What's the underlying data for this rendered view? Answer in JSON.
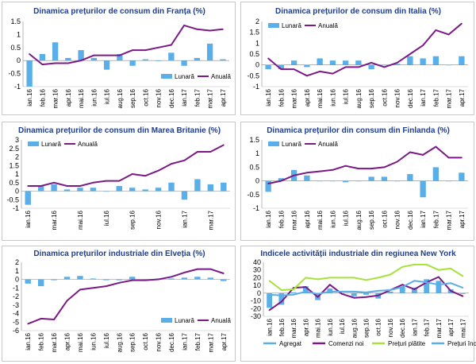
{
  "colors": {
    "bar": "#5aafe8",
    "annual": "#7b1a86",
    "title": "#1f3e8c",
    "purple": "#7b1a86",
    "blue_line": "#5aafe8",
    "green_line": "#a6e23a",
    "light_blue_line": "#5aafe8"
  },
  "chart_data": [
    {
      "type": "bar+line",
      "title": "Dinamica prețurilor de consum din Franța (%)",
      "ylim": [
        -1,
        1.5
      ],
      "yticks": [
        "-1",
        "-0.5",
        "0",
        "0.5",
        "1",
        "1.5"
      ],
      "categories": [
        "ian.16",
        "feb.16",
        "mar.16",
        "apr.16",
        "mai.16",
        "iun.16",
        "iul.16",
        "aug.16",
        "sep.16",
        "oct.16",
        "nov.16",
        "dec.16",
        "ian.17",
        "feb.17",
        "mar.17",
        "apr.17"
      ],
      "xlabels": [
        "ian.16",
        "feb.16",
        "mar.16",
        "apr.16",
        "mai.16",
        "iun.16",
        "iul.16",
        "aug.16",
        "sep.16",
        "oct.16",
        "nov.16",
        "dec.16",
        "ian.17",
        "feb.17",
        "mar.17",
        "apr.17"
      ],
      "legend": [
        "Lunară",
        "Anuală"
      ],
      "legend_pos": "bottom-right",
      "series": [
        {
          "name": "Lunară",
          "kind": "bar",
          "values": [
            -1.0,
            0.25,
            0.7,
            0.1,
            0.4,
            0.1,
            -0.35,
            0.25,
            -0.2,
            0.05,
            0.0,
            0.3,
            -0.2,
            0.1,
            0.65,
            0.05
          ]
        },
        {
          "name": "Anuală",
          "kind": "line",
          "values": [
            0.25,
            -0.15,
            -0.1,
            -0.1,
            0.0,
            0.2,
            0.2,
            0.2,
            0.4,
            0.4,
            0.5,
            0.6,
            1.35,
            1.2,
            1.15,
            1.2
          ]
        }
      ]
    },
    {
      "type": "bar+line",
      "title": "Dinamica prețurilor de consum din Italia (%)",
      "ylim": [
        -1,
        2
      ],
      "yticks": [
        "-1",
        "-0.5",
        "0",
        "0.5",
        "1",
        "1.5",
        "2"
      ],
      "categories": [
        "ian.16",
        "feb.16",
        "mar.16",
        "apr.16",
        "mai.16",
        "iun.16",
        "iul.16",
        "aug.16",
        "sep.16",
        "oct.16",
        "nov.16",
        "dec.16",
        "ian.17",
        "feb.17",
        "mar.17",
        "apr.17"
      ],
      "xlabels": [
        "ian.16",
        "feb.16",
        "mar.16",
        "apr.16",
        "mai.16",
        "iun.16",
        "iul.16",
        "aug.16",
        "sep.16",
        "oct.16",
        "nov.16",
        "dec.16",
        "ian.17",
        "feb.17",
        "mar.17",
        "apr.17"
      ],
      "legend": [
        "Lunară",
        "Anuală"
      ],
      "legend_pos": "top-left",
      "series": [
        {
          "name": "Lunară",
          "kind": "bar",
          "values": [
            -0.2,
            -0.2,
            0.2,
            -0.1,
            0.3,
            0.2,
            0.2,
            0.2,
            -0.2,
            0.0,
            0.05,
            0.4,
            0.3,
            0.4,
            0.0,
            0.4
          ]
        },
        {
          "name": "Anuală",
          "kind": "line",
          "values": [
            0.3,
            -0.2,
            -0.2,
            -0.5,
            -0.3,
            -0.4,
            -0.1,
            -0.1,
            0.1,
            -0.1,
            0.1,
            0.5,
            0.9,
            1.6,
            1.4,
            1.9
          ]
        }
      ]
    },
    {
      "type": "bar+line",
      "title": "Dinamica prețurilor de consum din Marea Britanie (%)",
      "ylim": [
        -1,
        3
      ],
      "yticks": [
        "-1",
        "-0.5",
        "0",
        "0.5",
        "1",
        "1.5",
        "2",
        "2.5",
        "3"
      ],
      "categories": [
        "ian.16",
        "feb.16",
        "mar.16",
        "apr.16",
        "mai.16",
        "iun.16",
        "iul.16",
        "aug.16",
        "sep.16",
        "oct.16",
        "nov.16",
        "dec.16",
        "ian.17",
        "feb.17",
        "mar.17",
        "apr.17"
      ],
      "xlabels": [
        "ian.16",
        "mar.16",
        "mai.16",
        "iul.16",
        "sep.16",
        "nov.16",
        "ian.17",
        "mar.17"
      ],
      "legend": [
        "Lunară",
        "Anuală"
      ],
      "legend_pos": "top-left",
      "series": [
        {
          "name": "Lunară",
          "kind": "bar",
          "values": [
            -0.8,
            0.3,
            0.4,
            0.1,
            0.2,
            0.2,
            0.0,
            0.3,
            0.2,
            0.1,
            0.2,
            0.5,
            -0.5,
            0.7,
            0.4,
            0.5
          ]
        },
        {
          "name": "Anuală",
          "kind": "line",
          "values": [
            0.3,
            0.3,
            0.5,
            0.3,
            0.3,
            0.5,
            0.6,
            0.6,
            1.0,
            0.9,
            1.2,
            1.6,
            1.8,
            2.3,
            2.3,
            2.7
          ]
        }
      ]
    },
    {
      "type": "bar+line",
      "title": "Dinamica prețurilor din consum din Finlanda (%)",
      "ylim": [
        -1,
        1.5
      ],
      "yticks": [
        "-1",
        "-0.5",
        "0",
        "0.5",
        "1",
        "1.5"
      ],
      "categories": [
        "ian.16",
        "feb.16",
        "mar.16",
        "apr.16",
        "mai.16",
        "iun.16",
        "iul.16",
        "aug.16",
        "sep.16",
        "oct.16",
        "nov.16",
        "dec.16",
        "ian.17",
        "feb.17",
        "mar.17",
        "apr.17"
      ],
      "xlabels": [
        "ian.16",
        "feb.16",
        "mar.16",
        "apr.16",
        "mai.16",
        "iun.16",
        "iul.16",
        "aug.16",
        "sep.16",
        "oct.16",
        "nov.16",
        "dec.16",
        "ian.17",
        "feb.17",
        "mar.17",
        "apr.17"
      ],
      "legend": [
        "Lunară",
        "Anuală"
      ],
      "legend_pos": "top-left",
      "series": [
        {
          "name": "Lunară",
          "kind": "bar",
          "values": [
            -0.4,
            0.1,
            0.4,
            0.2,
            0.0,
            0.0,
            -0.05,
            0.0,
            0.15,
            0.15,
            0.0,
            0.25,
            -0.6,
            0.5,
            0.0,
            0.3
          ]
        },
        {
          "name": "Anuală",
          "kind": "line",
          "values": [
            -0.1,
            0.0,
            0.2,
            0.3,
            0.35,
            0.4,
            0.55,
            0.45,
            0.45,
            0.5,
            0.7,
            1.05,
            0.95,
            1.25,
            0.85,
            0.85
          ]
        }
      ]
    },
    {
      "type": "bar+line",
      "title": "Dinamica prețurilor industriale din Elveția (%)",
      "ylim": [
        -6,
        2
      ],
      "yticks": [
        "-6",
        "-5",
        "-4",
        "-3",
        "-2",
        "-1",
        "0",
        "1",
        "2"
      ],
      "categories": [
        "ian.16",
        "feb.16",
        "mar.16",
        "apr.16",
        "mai.16",
        "iun.16",
        "iul.16",
        "aug.16",
        "sep.16",
        "oct.16",
        "nov.16",
        "dec.16",
        "ian.17",
        "feb.17",
        "mar.17",
        "apr.17"
      ],
      "xlabels": [
        "ian.16",
        "feb.16",
        "mar.16",
        "apr.16",
        "mai.16",
        "iun.16",
        "iul.16",
        "aug.16",
        "sep.16",
        "oct.16",
        "nov.16",
        "dec.16",
        "ian.17",
        "feb.17",
        "mar.17",
        "apr.17"
      ],
      "legend": [
        "Lunară",
        "Anuală"
      ],
      "legend_pos": "bottom-right",
      "series": [
        {
          "name": "Lunară",
          "kind": "bar",
          "values": [
            -0.5,
            -0.8,
            -0.1,
            0.3,
            0.4,
            0.1,
            -0.1,
            -0.1,
            0.3,
            -0.1,
            0.1,
            0.1,
            0.2,
            0.3,
            0.2,
            -0.2
          ]
        },
        {
          "name": "Anuală",
          "kind": "line",
          "values": [
            -5.2,
            -4.6,
            -4.7,
            -2.5,
            -1.2,
            -1.0,
            -0.8,
            -0.4,
            -0.1,
            -0.1,
            0.0,
            0.3,
            0.8,
            1.2,
            1.2,
            0.7
          ]
        }
      ]
    },
    {
      "type": "bar+line",
      "title": "Indicele activității industriale din regiunea New York",
      "ylim": [
        -30,
        40
      ],
      "yticks": [
        "-30",
        "-20",
        "-10",
        "0",
        "10",
        "20",
        "30",
        "40"
      ],
      "categories": [
        "ian.16",
        "feb.16",
        "mar.16",
        "apr.16",
        "mai.16",
        "iun.16",
        "iul.16",
        "aug.16",
        "sep.16",
        "oct.16",
        "nov.16",
        "dec.16",
        "ian.17",
        "feb.17",
        "mar.17",
        "apr.17",
        "mai.17"
      ],
      "xlabels": [
        "ian.16",
        "feb.16",
        "mar.16",
        "apr.16",
        "mai.16",
        "iun.16",
        "iul.16",
        "aug.16",
        "sep.16",
        "oct.16",
        "nov.16",
        "dec.16",
        "ian.17",
        "feb.17",
        "mar.17",
        "apr.17",
        "mai.17"
      ],
      "legend": [
        "Agregat",
        "Comenzi noi",
        "Prețuri plătite",
        "Prețuri încasate"
      ],
      "legend_pos": "bottom",
      "series": [
        {
          "name": "Agregat",
          "kind": "bar",
          "values": [
            -19,
            -15,
            1,
            9,
            -9,
            6,
            0,
            -4,
            -2,
            -7,
            2,
            8,
            7,
            18,
            16,
            5,
            -1
          ]
        },
        {
          "name": "Comenzi noi",
          "kind": "line",
          "color": "purple",
          "values": [
            -22,
            -11,
            7,
            8,
            -5,
            11,
            -1,
            -6,
            -5,
            -3,
            4,
            11,
            5,
            14,
            21,
            3,
            -4
          ]
        },
        {
          "name": "Prețuri plătite",
          "kind": "line",
          "color": "green",
          "values": [
            16,
            4,
            5,
            20,
            18,
            20,
            20,
            20,
            17,
            20,
            24,
            34,
            37,
            37,
            30,
            32,
            22
          ]
        },
        {
          "name": "Prețuri încasate",
          "kind": "line",
          "color": "lightblue",
          "values": [
            -2,
            -3,
            -2,
            2,
            -1,
            2,
            2,
            2,
            1,
            3,
            4,
            8,
            16,
            14,
            11,
            13,
            7
          ]
        }
      ]
    }
  ]
}
